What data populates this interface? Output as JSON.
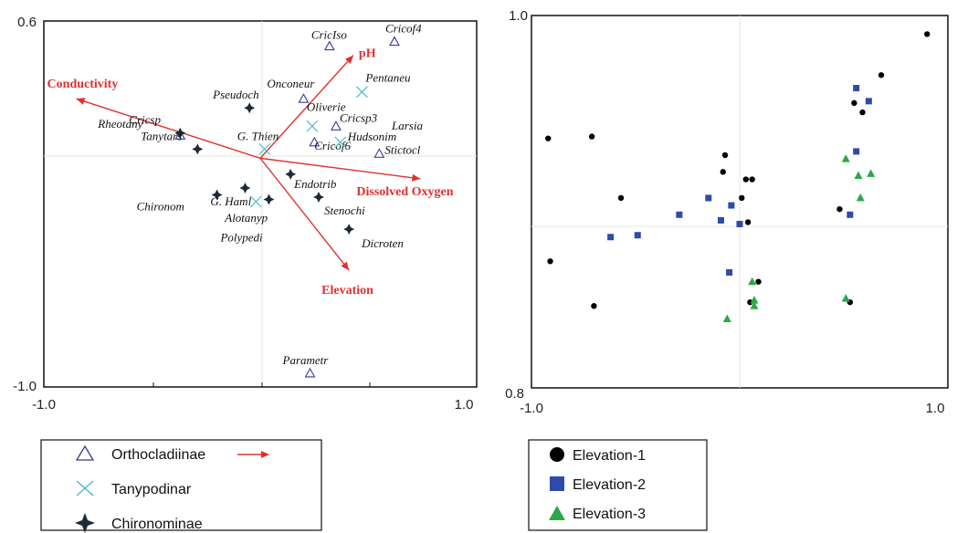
{
  "chart_data": [
    {
      "type": "scatter",
      "title": "",
      "xlabel": "",
      "ylabel": "",
      "xlim": [
        -1.0,
        1.0
      ],
      "ylim": [
        -1.0,
        0.6
      ],
      "x_tick_labels": [
        "-1.0",
        "1.0"
      ],
      "y_tick_labels": [
        "0.6",
        "-1.0"
      ],
      "grid": false,
      "legend": "bottom-left",
      "colors": {
        "Orthocladiinae": "#3a3a9a",
        "Tanypodinar": "#3fb8c8",
        "Chironominae": "#1b2a3a",
        "arrows": "#e03030"
      },
      "environmental_vectors": [
        {
          "name": "Conductivity",
          "x": -0.85,
          "y": 0.26
        },
        {
          "name": "pH",
          "x": 0.43,
          "y": 0.45
        },
        {
          "name": "Dissolved Oxygen",
          "x": 0.74,
          "y": -0.09
        },
        {
          "name": "Elevation",
          "x": 0.41,
          "y": -0.49
        }
      ],
      "series": [
        {
          "name": "Orthocladiinae",
          "marker": "triangle-open",
          "points": [
            {
              "label": "CricIso",
              "x": 0.32,
              "y": 0.49
            },
            {
              "label": "Cricof4",
              "x": 0.62,
              "y": 0.51
            },
            {
              "label": "Onconeur",
              "x": 0.2,
              "y": 0.26
            },
            {
              "label": "Cricsp3",
              "x": 0.35,
              "y": 0.14
            },
            {
              "label": "Cricof6",
              "x": 0.25,
              "y": 0.07
            },
            {
              "label": "Cricsp",
              "x": -0.37,
              "y": 0.1
            },
            {
              "label": "Stictocl",
              "x": 0.55,
              "y": 0.02
            },
            {
              "label": "Parametr",
              "x": 0.23,
              "y": -0.94
            }
          ]
        },
        {
          "name": "Tanypodinar",
          "marker": "x",
          "points": [
            {
              "label": "Pentaneu",
              "x": 0.47,
              "y": 0.29
            },
            {
              "label": "Oliverie",
              "x": 0.24,
              "y": 0.14
            },
            {
              "label": "Hudsonim",
              "x": 0.37,
              "y": 0.07
            },
            {
              "label": "G. Thien",
              "x": 0.02,
              "y": 0.04
            },
            {
              "label": "Alotanyp",
              "x": -0.02,
              "y": -0.19
            }
          ]
        },
        {
          "name": "Chironominae",
          "marker": "star",
          "points": [
            {
              "label": "Pseudoch",
              "x": -0.05,
              "y": 0.22
            },
            {
              "label": "Rheotany",
              "x": -0.37,
              "y": 0.11
            },
            {
              "label": "Tanytars",
              "x": -0.29,
              "y": 0.04
            },
            {
              "label": "Chironom",
              "x": -0.2,
              "y": -0.16
            },
            {
              "label": "G. Haml",
              "x": -0.07,
              "y": -0.13
            },
            {
              "label": "Polypedi",
              "x": 0.04,
              "y": -0.18
            },
            {
              "label": "Endotrib",
              "x": 0.14,
              "y": -0.07
            },
            {
              "label": "Stenochi",
              "x": 0.27,
              "y": -0.17
            },
            {
              "label": "Dicroten",
              "x": 0.41,
              "y": -0.31
            }
          ]
        }
      ],
      "extra_labels": [
        "Larsia"
      ]
    },
    {
      "type": "scatter",
      "title": "",
      "xlabel": "",
      "ylabel": "",
      "xlim": [
        -1.0,
        1.0
      ],
      "ylim": [
        0.8,
        1.0
      ],
      "x_tick_labels": [
        "-1.0",
        "1.0"
      ],
      "y_tick_labels": [
        "1.0",
        "0.8"
      ],
      "grid": false,
      "legend": "bottom-left",
      "colors": {
        "Elevation-1": "#000000",
        "Elevation-2": "#2f4aa8",
        "Elevation-3": "#2aa84a"
      },
      "series": [
        {
          "name": "Elevation-1",
          "marker": "circle",
          "points": [
            [
              0.9,
              0.99
            ],
            [
              0.68,
              0.968
            ],
            [
              0.55,
              0.953
            ],
            [
              0.59,
              0.948
            ],
            [
              -0.92,
              0.934
            ],
            [
              -0.71,
              0.935
            ],
            [
              -0.07,
              0.925
            ],
            [
              -0.08,
              0.916
            ],
            [
              0.03,
              0.912
            ],
            [
              0.06,
              0.912
            ],
            [
              -0.57,
              0.902
            ],
            [
              0.01,
              0.902
            ],
            [
              0.48,
              0.896
            ],
            [
              0.04,
              0.889
            ],
            [
              -0.91,
              0.868
            ],
            [
              0.09,
              0.857
            ],
            [
              -0.7,
              0.844
            ],
            [
              0.05,
              0.846
            ],
            [
              0.53,
              0.846
            ]
          ]
        },
        {
          "name": "Elevation-2",
          "marker": "square",
          "points": [
            [
              0.56,
              0.961
            ],
            [
              0.62,
              0.954
            ],
            [
              0.56,
              0.927
            ],
            [
              -0.15,
              0.902
            ],
            [
              -0.04,
              0.898
            ],
            [
              -0.29,
              0.893
            ],
            [
              -0.09,
              0.89
            ],
            [
              0.0,
              0.888
            ],
            [
              0.53,
              0.893
            ],
            [
              -0.49,
              0.882
            ],
            [
              -0.62,
              0.881
            ],
            [
              -0.05,
              0.862
            ]
          ]
        },
        {
          "name": "Elevation-3",
          "marker": "triangle",
          "points": [
            [
              0.51,
              0.923
            ],
            [
              0.57,
              0.914
            ],
            [
              0.63,
              0.915
            ],
            [
              0.58,
              0.902
            ],
            [
              0.06,
              0.857
            ],
            [
              0.07,
              0.847
            ],
            [
              0.07,
              0.844
            ],
            [
              0.51,
              0.848
            ],
            [
              -0.06,
              0.837
            ]
          ]
        }
      ]
    }
  ]
}
